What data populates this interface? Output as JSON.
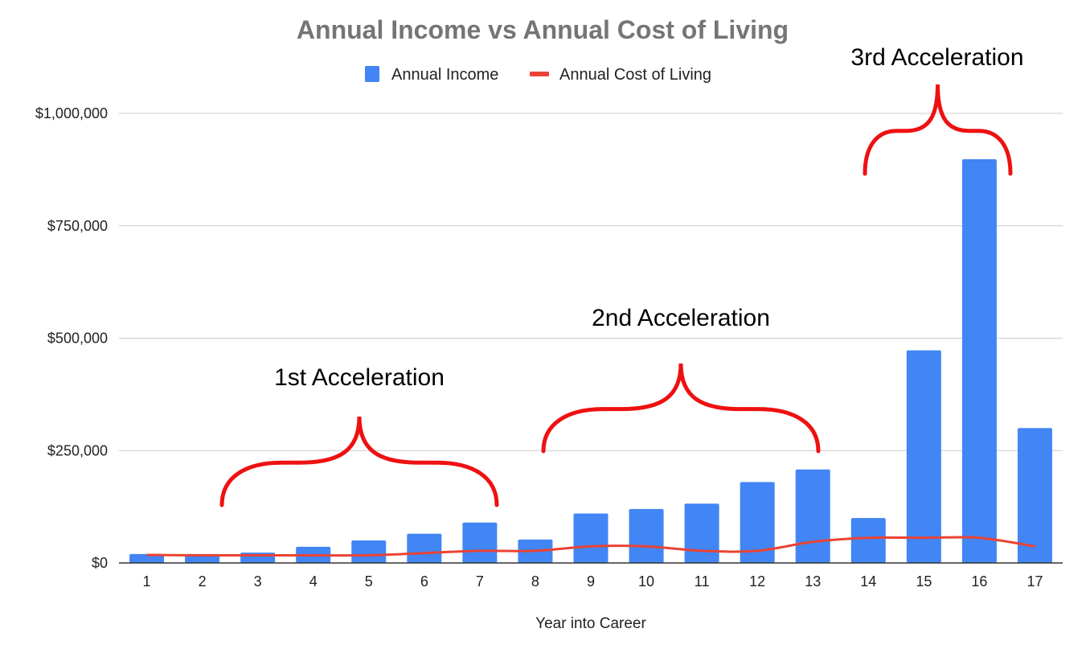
{
  "chart_data": {
    "type": "bar",
    "title": "Annual Income vs Annual Cost of Living",
    "xlabel": "Year into Career",
    "ylabel": "",
    "categories": [
      "1",
      "2",
      "3",
      "4",
      "5",
      "6",
      "7",
      "8",
      "9",
      "10",
      "11",
      "12",
      "13",
      "14",
      "15",
      "16",
      "17"
    ],
    "series": [
      {
        "name": "Annual Income",
        "type": "bar",
        "color": "#4285f4",
        "values": [
          20000,
          20000,
          23000,
          36000,
          50000,
          65000,
          90000,
          52000,
          110000,
          120000,
          132000,
          180000,
          208000,
          100000,
          473000,
          898000,
          300000
        ]
      },
      {
        "name": "Annual Cost of Living",
        "type": "line",
        "color": "#ea4335",
        "values": [
          18000,
          17000,
          17000,
          17000,
          17000,
          22000,
          27000,
          27000,
          37000,
          37000,
          27000,
          27000,
          47000,
          56000,
          56000,
          56000,
          37000
        ]
      }
    ],
    "ylim": [
      0,
      1000000
    ],
    "yticks": [
      0,
      250000,
      500000,
      750000,
      1000000
    ],
    "ytick_labels": [
      "$0",
      "$250,000",
      "$500,000",
      "$750,000",
      "$1,000,000"
    ],
    "grid": true,
    "legend": "top",
    "annotations": [
      {
        "text": "1st Acceleration",
        "from": "3",
        "to": "7",
        "color": "#ee1111"
      },
      {
        "text": "2nd Acceleration",
        "from": "8",
        "to": "13",
        "color": "#ee1111"
      },
      {
        "text": "3rd Acceleration",
        "from": "14",
        "to": "16",
        "color": "#ee1111"
      }
    ]
  }
}
